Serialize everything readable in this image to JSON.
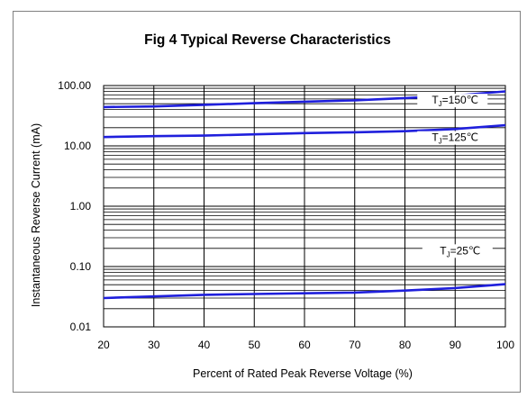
{
  "chart_data": {
    "type": "line",
    "title": "Fig 4 Typical Reverse Characteristics",
    "xlabel": "Percent of Rated Peak Reverse Voltage (%)",
    "ylabel": "Instantaneous Reverse Current (mA)",
    "xlim": [
      20,
      100
    ],
    "ylim": [
      0.01,
      100
    ],
    "y_scale": "log",
    "grid": true,
    "x_ticks": [
      20,
      30,
      40,
      50,
      60,
      70,
      80,
      90,
      100
    ],
    "x_tick_labels": [
      "20",
      "30",
      "40",
      "50",
      "60",
      "70",
      "80",
      "90",
      "100"
    ],
    "y_ticks": [
      0.01,
      0.1,
      1,
      10,
      100
    ],
    "y_tick_labels": [
      "0.01",
      "0.10",
      "1.00",
      "10.00",
      "100.00"
    ],
    "line_color": "#1f1fdc",
    "series": [
      {
        "label_prefix": "T",
        "label_sub": "J",
        "label_suffix": "=150℃",
        "x": [
          20,
          30,
          40,
          50,
          60,
          70,
          80,
          90,
          100
        ],
        "y": [
          44,
          45,
          48,
          51,
          54,
          57,
          62,
          68,
          80
        ],
        "label_at": [
          90,
          50
        ]
      },
      {
        "label_prefix": "T",
        "label_sub": "J",
        "label_suffix": "=125℃",
        "x": [
          20,
          30,
          40,
          50,
          60,
          70,
          80,
          90,
          100
        ],
        "y": [
          14,
          14.5,
          14.8,
          15.5,
          16.3,
          16.8,
          17.5,
          19,
          22
        ],
        "label_at": [
          90,
          12
        ]
      },
      {
        "label_prefix": "T",
        "label_sub": "J",
        "label_suffix": "=25℃",
        "x": [
          20,
          30,
          40,
          50,
          60,
          70,
          80,
          90,
          100
        ],
        "y": [
          0.03,
          0.032,
          0.034,
          0.035,
          0.036,
          0.037,
          0.04,
          0.044,
          0.051
        ],
        "label_at": [
          91,
          0.16
        ]
      }
    ]
  }
}
